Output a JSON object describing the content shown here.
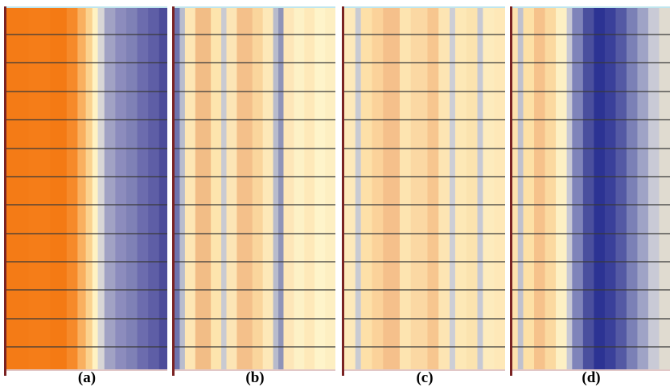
{
  "figure": {
    "panels": [
      {
        "id": "a",
        "label": "(a)",
        "stripe_colors": [
          "#f47b16",
          "#f57d18",
          "#f47a14",
          "#f68a2a",
          "#f9b060",
          "#fbd28f",
          "#fff2c2",
          "#d8d6d6",
          "#a1a2c4",
          "#8c8cbd",
          "#7f81b6",
          "#6c6cae",
          "#5e5ea6",
          "#4c4c9a"
        ],
        "stripe_weights": [
          4,
          4,
          3,
          2,
          1.5,
          1.2,
          1,
          1.2,
          2,
          2,
          2,
          2,
          2,
          1.5
        ]
      },
      {
        "id": "b",
        "label": "(b)",
        "stripe_colors": [
          "#6e73ac",
          "#b8bccd",
          "#fde6b4",
          "#f2bd86",
          "#fde4ad",
          "#c9cad1",
          "#fce5b5",
          "#f4c08a",
          "#fad59c",
          "#fde8b8",
          "#b8bbcc",
          "#8f93b8",
          "#fde6b8",
          "#fdf1c6",
          "#fee9b9",
          "#fef4ca",
          "#fdefc2"
        ],
        "stripe_weights": [
          1,
          1,
          2,
          3,
          2,
          1,
          2,
          3,
          2,
          2,
          1,
          1,
          2,
          2,
          2,
          2,
          2
        ]
      },
      {
        "id": "c",
        "label": "(c)",
        "stripe_colors": [
          "#fde9bb",
          "#c9cbd3",
          "#fde0a8",
          "#fbd29a",
          "#f5c08b",
          "#fde4b0",
          "#fbd8a3",
          "#f7c68f",
          "#fde5b3",
          "#ccced6",
          "#fde8b6",
          "#fbe3af",
          "#c7c9d4",
          "#fdebbd",
          "#fee8b8"
        ],
        "stripe_weights": [
          2,
          1,
          2,
          2,
          3,
          2,
          3,
          2,
          2,
          1,
          2,
          2,
          1,
          2,
          2
        ]
      },
      {
        "id": "d",
        "label": "(d)",
        "stripe_colors": [
          "#fde2ad",
          "#c0c1ce",
          "#fde0a6",
          "#f6c28b",
          "#fbd9a0",
          "#fdf0c4",
          "#c7c8d5",
          "#7f84ba",
          "#4a4f9e",
          "#2c3393",
          "#3a409a",
          "#5459a4",
          "#7b80b6",
          "#9fa3c6",
          "#c9cad6",
          "#e0dbd0"
        ],
        "stripe_weights": [
          1,
          1,
          2,
          2,
          2,
          2,
          1,
          2,
          2,
          2,
          2,
          2,
          2,
          2,
          2,
          2
        ]
      }
    ]
  }
}
